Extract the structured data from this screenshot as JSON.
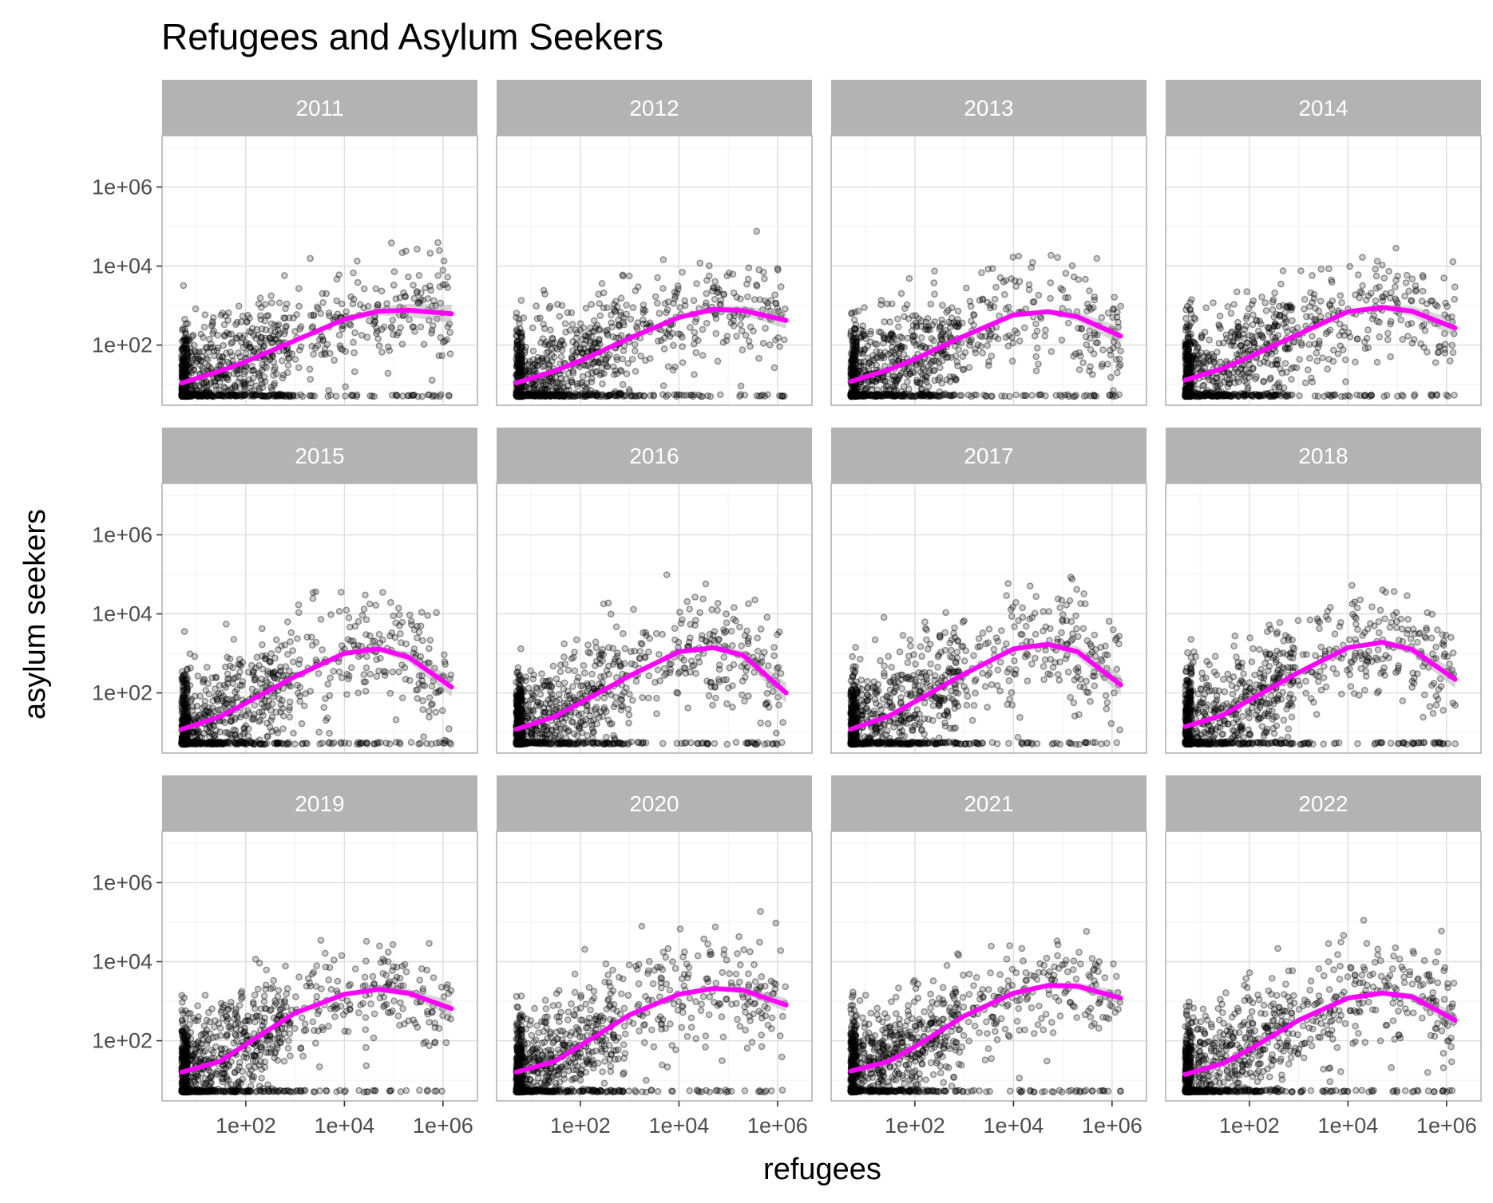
{
  "chart_data": {
    "type": "scatter",
    "title": "Refugees and Asylum Seekers",
    "xlabel": "refugees",
    "ylabel": "asylum seekers",
    "x_scale": "log10",
    "y_scale": "log10",
    "xlim": [
      2,
      5000000
    ],
    "ylim": [
      3,
      20000000
    ],
    "x_ticks": [
      100,
      10000,
      1000000
    ],
    "x_tick_labels": [
      "1e+02",
      "1e+04",
      "1e+06"
    ],
    "y_ticks": [
      100,
      10000,
      1000000
    ],
    "y_tick_labels": [
      "1e+02",
      "1e+04",
      "1e+06"
    ],
    "facet_layout": {
      "rows": 3,
      "cols": 4
    },
    "grid": true,
    "legend": "none",
    "point_color": "#000000",
    "smooth_color": "#ff00ff",
    "ribbon_color": "#999999",
    "facets": [
      {
        "label": "2011",
        "smooth": {
          "x": [
            5,
            30,
            100,
            1000,
            10000,
            50000,
            200000,
            1500000
          ],
          "y": [
            11,
            22,
            38,
            130,
            450,
            720,
            760,
            620
          ],
          "lower": [
            10,
            20,
            35,
            120,
            380,
            560,
            520,
            360
          ],
          "upper": [
            12,
            24,
            41,
            140,
            530,
            900,
            1100,
            1050
          ]
        }
      },
      {
        "label": "2012",
        "smooth": {
          "x": [
            5,
            30,
            100,
            1000,
            10000,
            50000,
            200000,
            1500000
          ],
          "y": [
            11,
            22,
            40,
            150,
            500,
            800,
            750,
            420
          ],
          "lower": [
            10,
            20,
            37,
            140,
            440,
            680,
            580,
            260
          ],
          "upper": [
            12,
            24,
            43,
            160,
            570,
            940,
            970,
            680
          ]
        }
      },
      {
        "label": "2013",
        "smooth": {
          "x": [
            5,
            30,
            100,
            1000,
            10000,
            50000,
            200000,
            1500000
          ],
          "y": [
            12,
            24,
            44,
            170,
            580,
            700,
            520,
            170
          ],
          "lower": [
            11,
            22,
            41,
            160,
            520,
            600,
            400,
            100
          ],
          "upper": [
            13,
            26,
            47,
            180,
            650,
            820,
            680,
            290
          ]
        }
      },
      {
        "label": "2014",
        "smooth": {
          "x": [
            5,
            30,
            100,
            1000,
            10000,
            50000,
            200000,
            1500000
          ],
          "y": [
            13,
            26,
            50,
            190,
            700,
            900,
            720,
            270
          ],
          "lower": [
            12,
            24,
            46,
            175,
            620,
            760,
            540,
            160
          ],
          "upper": [
            14,
            28,
            54,
            205,
            790,
            1060,
            960,
            450
          ]
        }
      },
      {
        "label": "2015",
        "smooth": {
          "x": [
            5,
            30,
            100,
            1000,
            10000,
            50000,
            200000,
            1500000
          ],
          "y": [
            12,
            25,
            55,
            260,
            1000,
            1300,
            800,
            140
          ],
          "lower": [
            11,
            23,
            51,
            240,
            900,
            1100,
            600,
            80
          ],
          "upper": [
            13,
            27,
            59,
            280,
            1110,
            1530,
            1060,
            245
          ]
        }
      },
      {
        "label": "2016",
        "smooth": {
          "x": [
            5,
            30,
            100,
            1000,
            10000,
            50000,
            200000,
            1500000
          ],
          "y": [
            12,
            25,
            56,
            270,
            1100,
            1400,
            900,
            100
          ],
          "lower": [
            11,
            23,
            52,
            250,
            1000,
            1200,
            680,
            55
          ],
          "upper": [
            13,
            27,
            60,
            290,
            1210,
            1630,
            1190,
            180
          ]
        }
      },
      {
        "label": "2017",
        "smooth": {
          "x": [
            5,
            30,
            100,
            1000,
            10000,
            50000,
            200000,
            1500000
          ],
          "y": [
            12,
            26,
            60,
            300,
            1300,
            1700,
            1100,
            160
          ],
          "lower": [
            11,
            24,
            56,
            280,
            1180,
            1450,
            800,
            90
          ],
          "upper": [
            13,
            28,
            64,
            320,
            1430,
            1990,
            1510,
            280
          ]
        }
      },
      {
        "label": "2018",
        "smooth": {
          "x": [
            5,
            30,
            100,
            1000,
            10000,
            50000,
            200000,
            1500000
          ],
          "y": [
            14,
            28,
            65,
            330,
            1400,
            1900,
            1250,
            220
          ],
          "lower": [
            13,
            26,
            60,
            310,
            1270,
            1650,
            950,
            130
          ],
          "upper": [
            15,
            30,
            70,
            350,
            1540,
            2190,
            1650,
            370
          ]
        }
      },
      {
        "label": "2019",
        "smooth": {
          "x": [
            5,
            30,
            100,
            1000,
            10000,
            50000,
            200000,
            1500000
          ],
          "y": [
            16,
            30,
            80,
            500,
            1500,
            2000,
            1600,
            650
          ],
          "lower": [
            15,
            28,
            75,
            470,
            1380,
            1750,
            1250,
            420
          ],
          "upper": [
            17,
            32,
            85,
            530,
            1630,
            2290,
            2050,
            1000
          ]
        }
      },
      {
        "label": "2020",
        "smooth": {
          "x": [
            5,
            30,
            100,
            1000,
            10000,
            50000,
            200000,
            1500000
          ],
          "y": [
            16,
            30,
            75,
            450,
            1500,
            2100,
            1900,
            800
          ],
          "lower": [
            15,
            28,
            70,
            420,
            1380,
            1850,
            1550,
            550
          ],
          "upper": [
            17,
            32,
            80,
            480,
            1630,
            2390,
            2330,
            1160
          ]
        }
      },
      {
        "label": "2021",
        "smooth": {
          "x": [
            5,
            30,
            100,
            1000,
            10000,
            50000,
            200000,
            1500000
          ],
          "y": [
            17,
            30,
            70,
            420,
            1600,
            2500,
            2400,
            1200
          ],
          "lower": [
            16,
            28,
            65,
            390,
            1450,
            2150,
            1950,
            800
          ],
          "upper": [
            18,
            32,
            75,
            450,
            1770,
            2910,
            2950,
            1800
          ]
        }
      },
      {
        "label": "2022",
        "smooth": {
          "x": [
            5,
            30,
            100,
            1000,
            10000,
            50000,
            200000,
            1500000
          ],
          "y": [
            14,
            27,
            60,
            330,
            1200,
            1600,
            1300,
            330
          ],
          "lower": [
            13,
            25,
            56,
            310,
            1100,
            1400,
            1050,
            210
          ],
          "upper": [
            15,
            29,
            64,
            350,
            1310,
            1830,
            1610,
            520
          ]
        }
      }
    ]
  }
}
